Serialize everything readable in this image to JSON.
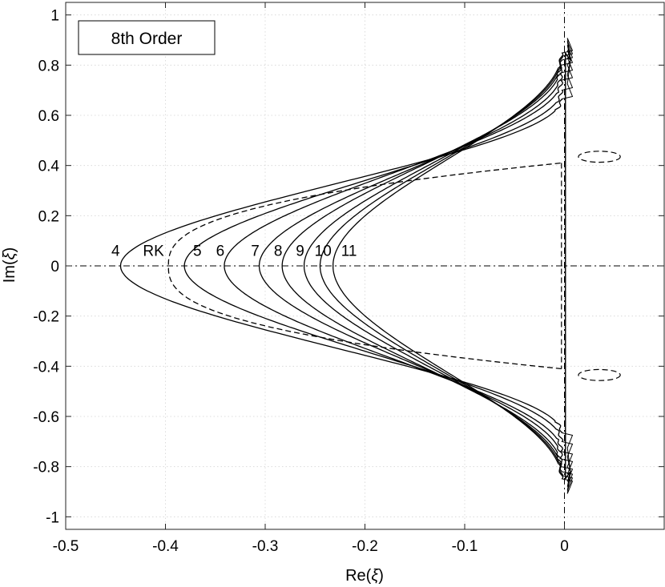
{
  "chart_data": {
    "type": "line",
    "title": "",
    "legend_text": "8th Order",
    "xlabel_prefix": "Re(",
    "xlabel_symbol": "ξ",
    "xlabel_suffix": ")",
    "ylabel_prefix": "Im(",
    "ylabel_symbol": "ξ",
    "ylabel_suffix": ")",
    "xlim": [
      -0.5,
      0.1
    ],
    "ylim": [
      -1.05,
      1.05
    ],
    "xticks": [
      -0.5,
      -0.4,
      -0.3,
      -0.2,
      -0.1,
      0
    ],
    "xtick_labels": [
      "-0.5",
      "-0.4",
      "-0.3",
      "-0.2",
      "-0.1",
      "0"
    ],
    "yticks": [
      -1,
      -0.8,
      -0.6,
      -0.4,
      -0.2,
      0,
      0.2,
      0.4,
      0.6,
      0.8,
      1
    ],
    "ytick_labels": [
      "-1",
      "-0.8",
      "-0.6",
      "-0.4",
      "-0.2",
      "0",
      "0.2",
      "0.4",
      "0.6",
      "0.8",
      "1"
    ],
    "grid": true,
    "series": [
      {
        "name": "4",
        "style": "solid",
        "x0": -0.445,
        "y_end": 0.665,
        "label_x": -0.45,
        "label_y": 0.065
      },
      {
        "name": "RK",
        "style": "dashed",
        "x0": -0.397,
        "y_end": 0.41,
        "label_x": -0.412,
        "label_y": 0.065
      },
      {
        "name": "5",
        "style": "solid",
        "x0": -0.381,
        "y_end": 0.7,
        "label_x": -0.368,
        "label_y": 0.065
      },
      {
        "name": "6",
        "style": "solid",
        "x0": -0.341,
        "y_end": 0.74,
        "label_x": -0.345,
        "label_y": 0.065
      },
      {
        "name": "7",
        "style": "solid",
        "x0": -0.306,
        "y_end": 0.77,
        "label_x": -0.31,
        "label_y": 0.065
      },
      {
        "name": "8",
        "style": "solid",
        "x0": -0.283,
        "y_end": 0.8,
        "label_x": -0.287,
        "label_y": 0.065
      },
      {
        "name": "9",
        "style": "solid",
        "x0": -0.261,
        "y_end": 0.82,
        "label_x": -0.265,
        "label_y": 0.065
      },
      {
        "name": "10",
        "style": "solid",
        "x0": -0.245,
        "y_end": 0.835,
        "label_x": -0.242,
        "label_y": 0.065
      },
      {
        "name": "11",
        "style": "solid",
        "x0": -0.232,
        "y_end": 0.848,
        "label_x": -0.216,
        "label_y": 0.065
      }
    ],
    "islands": [
      {
        "style": "dashed",
        "cx": 0.035,
        "cy": 0.435,
        "rx": 0.021,
        "ry": 0.022
      },
      {
        "style": "dashed",
        "cx": 0.035,
        "cy": -0.435,
        "rx": 0.021,
        "ry": 0.022
      }
    ]
  }
}
